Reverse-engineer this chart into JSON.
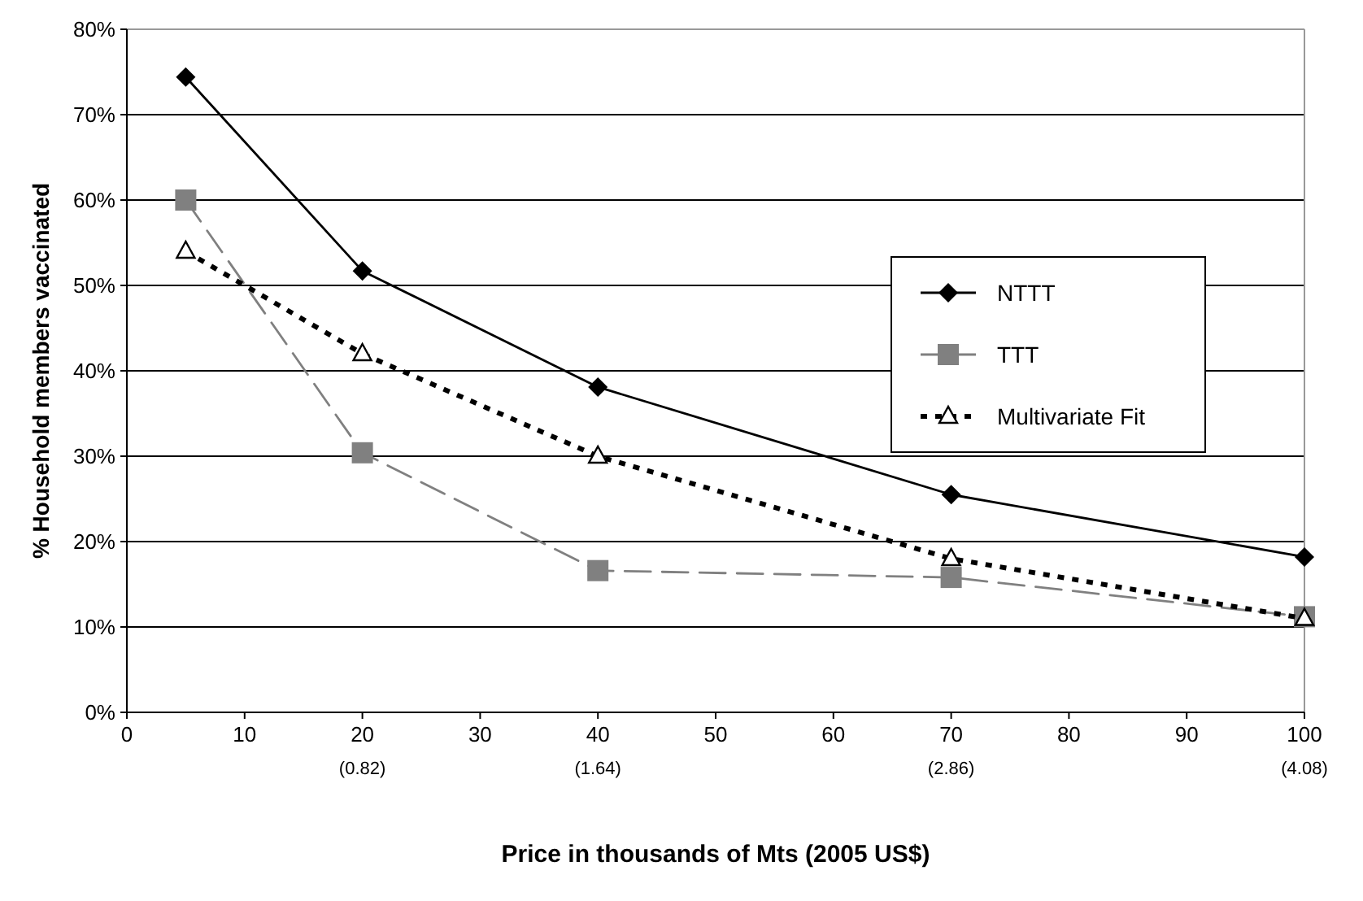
{
  "chart_data": {
    "type": "line",
    "xlabel": "Price in thousands of Mts (2005 US$)",
    "ylabel": "% Household members vaccinated",
    "xlim": [
      0,
      100
    ],
    "xticks": [
      0,
      10,
      {
        "value": 20,
        "label": "20\n(0.82)"
      },
      30,
      {
        "value": 40,
        "label": "40\n(1.64)"
      },
      50,
      60,
      {
        "value": 70,
        "label": "70\n(2.86)"
      },
      80,
      90,
      {
        "value": 100,
        "label": "100\n(4.08)"
      }
    ],
    "ylim": [
      0,
      80
    ],
    "yticks": [
      {
        "value": 0,
        "label": "0%"
      },
      {
        "value": 10,
        "label": "10%"
      },
      {
        "value": 20,
        "label": "20%"
      },
      {
        "value": 30,
        "label": "30%"
      },
      {
        "value": 40,
        "label": "40%"
      },
      {
        "value": 50,
        "label": "50%"
      },
      {
        "value": 60,
        "label": "60%"
      },
      {
        "value": 70,
        "label": "70%"
      },
      {
        "value": 80,
        "label": "80%"
      }
    ],
    "grid": "y",
    "legend": "right",
    "x": [
      5,
      20,
      40,
      70,
      100
    ],
    "series": [
      {
        "name": "NTTT",
        "color": "#000000",
        "values": [
          74.4,
          51.7,
          38.1,
          25.5,
          18.2
        ],
        "marker": "diamond",
        "line_style": "solid"
      },
      {
        "name": "TTT",
        "color": "#808080",
        "values": [
          60,
          30.4,
          16.6,
          15.8,
          11.2
        ],
        "marker": "square",
        "line_style": "dashed"
      },
      {
        "name": "Multivariate Fit",
        "color": "#000000",
        "values": [
          54,
          42,
          30,
          18,
          11
        ],
        "marker": "triangle",
        "line_style": "dotted"
      }
    ]
  }
}
